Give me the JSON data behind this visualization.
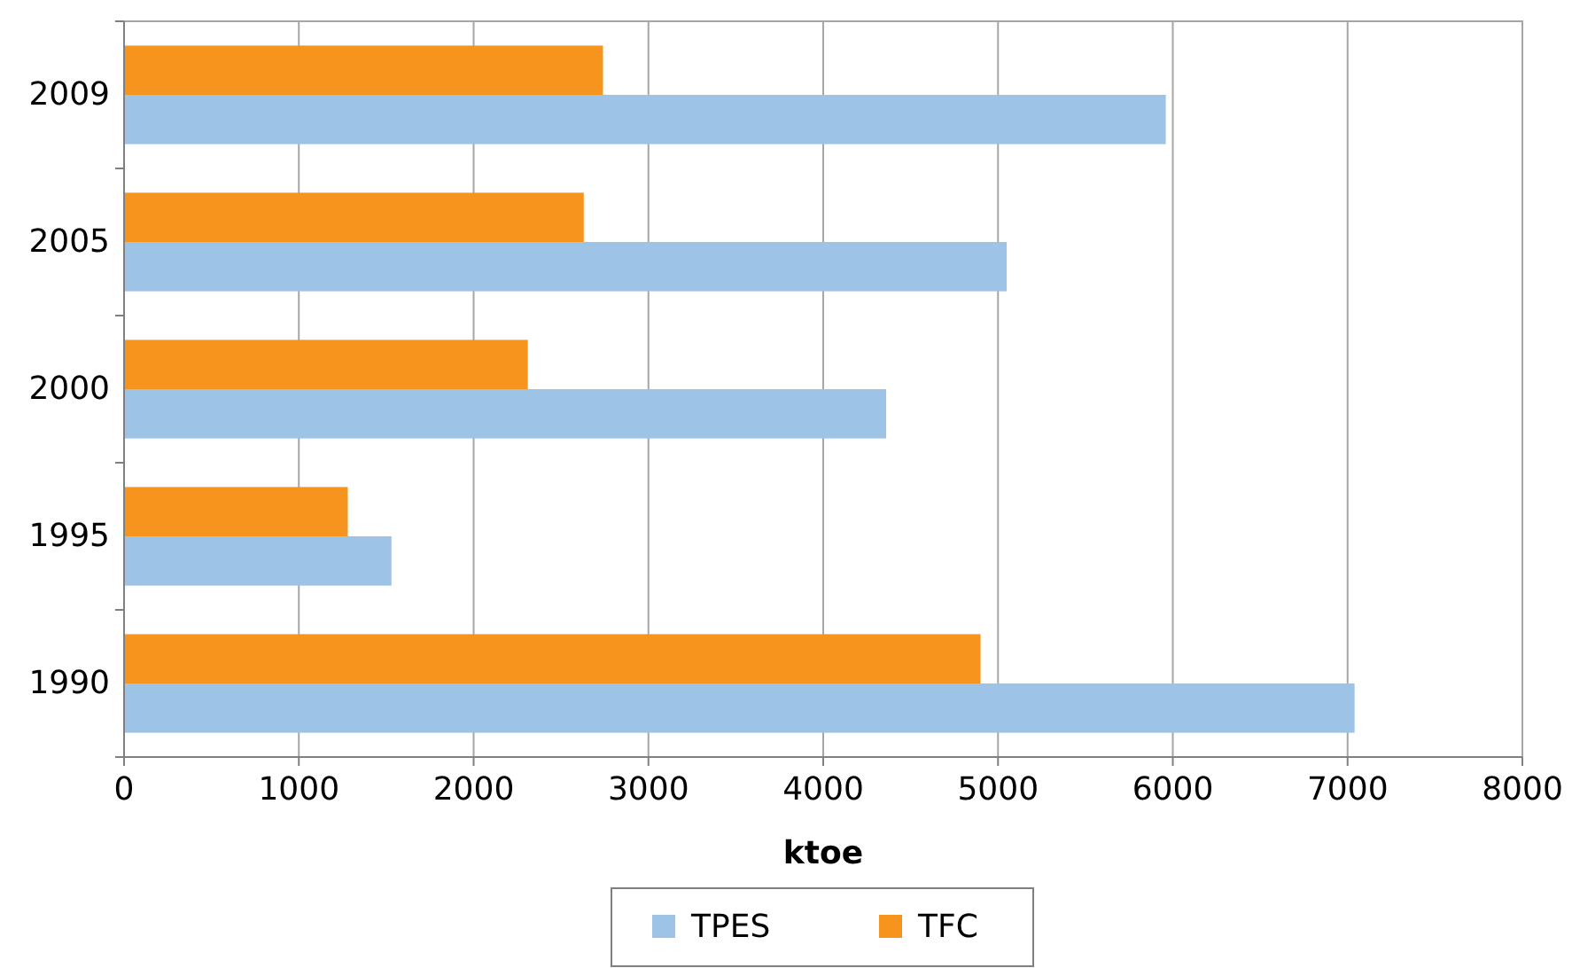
{
  "chart_data": {
    "type": "bar",
    "orientation": "horizontal",
    "xlabel": "ktoe",
    "categories": [
      "2009",
      "2005",
      "2000",
      "1995",
      "1990"
    ],
    "series": [
      {
        "name": "TPES",
        "color": "#9dc3e6",
        "values": [
          5960,
          5050,
          4360,
          1530,
          7040
        ]
      },
      {
        "name": "TFC",
        "color": "#f7941d",
        "values": [
          2740,
          2630,
          2310,
          1280,
          4900
        ]
      }
    ],
    "xlim": [
      0,
      8000
    ],
    "xticks": [
      0,
      1000,
      2000,
      3000,
      4000,
      5000,
      6000,
      7000,
      8000
    ],
    "grid": "x",
    "legend": "bottom"
  }
}
